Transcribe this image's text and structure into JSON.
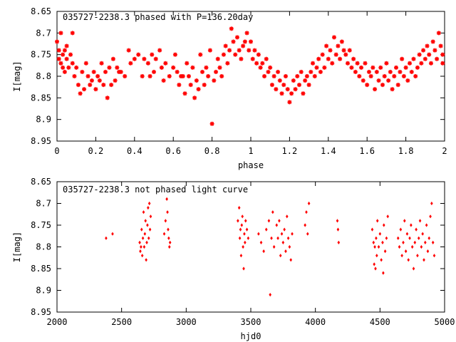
{
  "chart_data": [
    {
      "type": "scatter",
      "title": "035727-2238.3 phased with P=136.20day",
      "xlabel": "phase",
      "ylabel": "I[mag]",
      "xlim": [
        0,
        2
      ],
      "ylim": [
        8.95,
        8.65
      ],
      "y_inverted": true,
      "xticks": [
        "0",
        "0.2",
        "0.4",
        "0.6",
        "0.8",
        "1",
        "1.2",
        "1.4",
        "1.6",
        "1.8",
        "2"
      ],
      "yticks": [
        "8.65",
        "8.7",
        "8.75",
        "8.8",
        "8.85",
        "8.9",
        "8.95"
      ],
      "marker_color": "#ff0000",
      "points": [
        [
          0.0,
          8.72
        ],
        [
          0.01,
          8.76
        ],
        [
          0.01,
          8.74
        ],
        [
          0.02,
          8.7
        ],
        [
          0.02,
          8.77
        ],
        [
          0.03,
          8.75
        ],
        [
          0.03,
          8.78
        ],
        [
          0.04,
          8.74
        ],
        [
          0.04,
          8.79
        ],
        [
          0.05,
          8.73
        ],
        [
          0.05,
          8.76
        ],
        [
          0.06,
          8.78
        ],
        [
          0.07,
          8.75
        ],
        [
          0.08,
          8.7
        ],
        [
          0.08,
          8.77
        ],
        [
          0.09,
          8.8
        ],
        [
          0.1,
          8.78
        ],
        [
          0.11,
          8.82
        ],
        [
          0.12,
          8.84
        ],
        [
          0.13,
          8.79
        ],
        [
          0.14,
          8.83
        ],
        [
          0.15,
          8.77
        ],
        [
          0.16,
          8.8
        ],
        [
          0.17,
          8.82
        ],
        [
          0.18,
          8.81
        ],
        [
          0.19,
          8.79
        ],
        [
          0.2,
          8.83
        ],
        [
          0.21,
          8.8
        ],
        [
          0.22,
          8.81
        ],
        [
          0.23,
          8.77
        ],
        [
          0.24,
          8.82
        ],
        [
          0.25,
          8.79
        ],
        [
          0.26,
          8.85
        ],
        [
          0.27,
          8.78
        ],
        [
          0.28,
          8.82
        ],
        [
          0.29,
          8.76
        ],
        [
          0.3,
          8.81
        ],
        [
          0.31,
          8.78
        ],
        [
          0.32,
          8.79
        ],
        [
          0.33,
          8.79
        ],
        [
          0.35,
          8.8
        ],
        [
          0.37,
          8.74
        ],
        [
          0.38,
          8.77
        ],
        [
          0.4,
          8.76
        ],
        [
          0.42,
          8.75
        ],
        [
          0.44,
          8.8
        ],
        [
          0.45,
          8.76
        ],
        [
          0.47,
          8.77
        ],
        [
          0.48,
          8.8
        ],
        [
          0.49,
          8.75
        ],
        [
          0.5,
          8.79
        ],
        [
          0.51,
          8.76
        ],
        [
          0.53,
          8.74
        ],
        [
          0.54,
          8.78
        ],
        [
          0.55,
          8.81
        ],
        [
          0.56,
          8.77
        ],
        [
          0.58,
          8.8
        ],
        [
          0.6,
          8.78
        ],
        [
          0.61,
          8.75
        ],
        [
          0.62,
          8.79
        ],
        [
          0.63,
          8.82
        ],
        [
          0.64,
          8.8
        ],
        [
          0.65,
          8.8
        ],
        [
          0.66,
          8.84
        ],
        [
          0.67,
          8.77
        ],
        [
          0.68,
          8.8
        ],
        [
          0.69,
          8.82
        ],
        [
          0.7,
          8.78
        ],
        [
          0.71,
          8.85
        ],
        [
          0.72,
          8.81
        ],
        [
          0.73,
          8.83
        ],
        [
          0.74,
          8.75
        ],
        [
          0.75,
          8.79
        ],
        [
          0.76,
          8.82
        ],
        [
          0.77,
          8.78
        ],
        [
          0.78,
          8.8
        ],
        [
          0.79,
          8.74
        ],
        [
          0.8,
          8.91
        ],
        [
          0.81,
          8.81
        ],
        [
          0.82,
          8.79
        ],
        [
          0.83,
          8.76
        ],
        [
          0.84,
          8.78
        ],
        [
          0.85,
          8.8
        ],
        [
          0.86,
          8.75
        ],
        [
          0.87,
          8.73
        ],
        [
          0.88,
          8.77
        ],
        [
          0.89,
          8.74
        ],
        [
          0.9,
          8.69
        ],
        [
          0.91,
          8.72
        ],
        [
          0.92,
          8.75
        ],
        [
          0.93,
          8.71
        ],
        [
          0.94,
          8.74
        ],
        [
          0.95,
          8.76
        ],
        [
          0.96,
          8.73
        ],
        [
          0.97,
          8.72
        ],
        [
          0.98,
          8.7
        ],
        [
          0.99,
          8.74
        ],
        [
          1.0,
          8.72
        ],
        [
          1.01,
          8.76
        ],
        [
          1.02,
          8.74
        ],
        [
          1.03,
          8.77
        ],
        [
          1.04,
          8.75
        ],
        [
          1.05,
          8.78
        ],
        [
          1.06,
          8.77
        ],
        [
          1.07,
          8.8
        ],
        [
          1.08,
          8.76
        ],
        [
          1.09,
          8.79
        ],
        [
          1.1,
          8.78
        ],
        [
          1.11,
          8.82
        ],
        [
          1.12,
          8.8
        ],
        [
          1.13,
          8.83
        ],
        [
          1.14,
          8.79
        ],
        [
          1.15,
          8.81
        ],
        [
          1.16,
          8.84
        ],
        [
          1.17,
          8.82
        ],
        [
          1.18,
          8.8
        ],
        [
          1.19,
          8.83
        ],
        [
          1.2,
          8.86
        ],
        [
          1.21,
          8.84
        ],
        [
          1.22,
          8.81
        ],
        [
          1.23,
          8.83
        ],
        [
          1.24,
          8.8
        ],
        [
          1.25,
          8.82
        ],
        [
          1.26,
          8.79
        ],
        [
          1.27,
          8.84
        ],
        [
          1.28,
          8.81
        ],
        [
          1.29,
          8.8
        ],
        [
          1.3,
          8.82
        ],
        [
          1.31,
          8.79
        ],
        [
          1.32,
          8.77
        ],
        [
          1.33,
          8.8
        ],
        [
          1.34,
          8.78
        ],
        [
          1.35,
          8.76
        ],
        [
          1.36,
          8.79
        ],
        [
          1.37,
          8.75
        ],
        [
          1.38,
          8.78
        ],
        [
          1.39,
          8.73
        ],
        [
          1.4,
          8.76
        ],
        [
          1.41,
          8.74
        ],
        [
          1.42,
          8.77
        ],
        [
          1.43,
          8.71
        ],
        [
          1.44,
          8.75
        ],
        [
          1.45,
          8.73
        ],
        [
          1.46,
          8.76
        ],
        [
          1.47,
          8.72
        ],
        [
          1.48,
          8.74
        ],
        [
          1.49,
          8.75
        ],
        [
          1.5,
          8.77
        ],
        [
          1.51,
          8.74
        ],
        [
          1.52,
          8.78
        ],
        [
          1.53,
          8.76
        ],
        [
          1.54,
          8.79
        ],
        [
          1.55,
          8.77
        ],
        [
          1.56,
          8.8
        ],
        [
          1.57,
          8.78
        ],
        [
          1.58,
          8.81
        ],
        [
          1.59,
          8.77
        ],
        [
          1.6,
          8.82
        ],
        [
          1.61,
          8.79
        ],
        [
          1.62,
          8.8
        ],
        [
          1.63,
          8.78
        ],
        [
          1.64,
          8.83
        ],
        [
          1.65,
          8.79
        ],
        [
          1.66,
          8.81
        ],
        [
          1.67,
          8.78
        ],
        [
          1.68,
          8.82
        ],
        [
          1.69,
          8.8
        ],
        [
          1.7,
          8.77
        ],
        [
          1.71,
          8.81
        ],
        [
          1.72,
          8.79
        ],
        [
          1.73,
          8.83
        ],
        [
          1.74,
          8.8
        ],
        [
          1.75,
          8.78
        ],
        [
          1.76,
          8.82
        ],
        [
          1.77,
          8.79
        ],
        [
          1.78,
          8.76
        ],
        [
          1.79,
          8.8
        ],
        [
          1.8,
          8.78
        ],
        [
          1.81,
          8.81
        ],
        [
          1.82,
          8.77
        ],
        [
          1.83,
          8.79
        ],
        [
          1.84,
          8.76
        ],
        [
          1.85,
          8.8
        ],
        [
          1.86,
          8.78
        ],
        [
          1.87,
          8.75
        ],
        [
          1.88,
          8.77
        ],
        [
          1.89,
          8.74
        ],
        [
          1.9,
          8.76
        ],
        [
          1.91,
          8.73
        ],
        [
          1.92,
          8.75
        ],
        [
          1.93,
          8.77
        ],
        [
          1.94,
          8.72
        ],
        [
          1.95,
          8.74
        ],
        [
          1.96,
          8.76
        ],
        [
          1.97,
          8.7
        ],
        [
          1.98,
          8.73
        ],
        [
          1.99,
          8.75
        ],
        [
          1.99,
          8.77
        ]
      ]
    },
    {
      "type": "scatter",
      "title": "035727-2238.3 not phased light curve",
      "xlabel": "hjd0",
      "ylabel": "I[mag]",
      "xlim": [
        2000,
        5000
      ],
      "ylim": [
        8.95,
        8.65
      ],
      "y_inverted": true,
      "xticks": [
        "2000",
        "2500",
        "3000",
        "3500",
        "4000",
        "4500",
        "5000"
      ],
      "yticks": [
        "8.65",
        "8.7",
        "8.75",
        "8.8",
        "8.85",
        "8.9",
        "8.95"
      ],
      "marker_color": "#ff0000",
      "points": [
        [
          2380,
          8.78
        ],
        [
          2430,
          8.77
        ],
        [
          2640,
          8.79
        ],
        [
          2645,
          8.81
        ],
        [
          2650,
          8.8
        ],
        [
          2655,
          8.76
        ],
        [
          2660,
          8.82
        ],
        [
          2665,
          8.78
        ],
        [
          2670,
          8.72
        ],
        [
          2675,
          8.8
        ],
        [
          2680,
          8.77
        ],
        [
          2685,
          8.74
        ],
        [
          2690,
          8.83
        ],
        [
          2695,
          8.79
        ],
        [
          2700,
          8.75
        ],
        [
          2705,
          8.71
        ],
        [
          2710,
          8.78
        ],
        [
          2715,
          8.7
        ],
        [
          2720,
          8.76
        ],
        [
          2725,
          8.73
        ],
        [
          2830,
          8.77
        ],
        [
          2840,
          8.74
        ],
        [
          2850,
          8.69
        ],
        [
          2855,
          8.72
        ],
        [
          2860,
          8.76
        ],
        [
          2865,
          8.78
        ],
        [
          2870,
          8.8
        ],
        [
          2875,
          8.79
        ],
        [
          3400,
          8.74
        ],
        [
          3410,
          8.71
        ],
        [
          3415,
          8.78
        ],
        [
          3420,
          8.76
        ],
        [
          3425,
          8.82
        ],
        [
          3430,
          8.75
        ],
        [
          3435,
          8.73
        ],
        [
          3440,
          8.8
        ],
        [
          3445,
          8.85
        ],
        [
          3450,
          8.77
        ],
        [
          3455,
          8.79
        ],
        [
          3460,
          8.74
        ],
        [
          3470,
          8.76
        ],
        [
          3480,
          8.78
        ],
        [
          3560,
          8.77
        ],
        [
          3580,
          8.79
        ],
        [
          3600,
          8.81
        ],
        [
          3620,
          8.76
        ],
        [
          3640,
          8.74
        ],
        [
          3650,
          8.91
        ],
        [
          3660,
          8.78
        ],
        [
          3670,
          8.72
        ],
        [
          3680,
          8.8
        ],
        [
          3700,
          8.75
        ],
        [
          3710,
          8.78
        ],
        [
          3720,
          8.74
        ],
        [
          3730,
          8.82
        ],
        [
          3740,
          8.77
        ],
        [
          3750,
          8.79
        ],
        [
          3760,
          8.76
        ],
        [
          3770,
          8.81
        ],
        [
          3780,
          8.73
        ],
        [
          3790,
          8.78
        ],
        [
          3800,
          8.8
        ],
        [
          3810,
          8.83
        ],
        [
          3820,
          8.77
        ],
        [
          3920,
          8.75
        ],
        [
          3930,
          8.72
        ],
        [
          3940,
          8.77
        ],
        [
          3950,
          8.7
        ],
        [
          4170,
          8.74
        ],
        [
          4175,
          8.76
        ],
        [
          4180,
          8.79
        ],
        [
          4440,
          8.76
        ],
        [
          4450,
          8.79
        ],
        [
          4455,
          8.84
        ],
        [
          4460,
          8.8
        ],
        [
          4465,
          8.85
        ],
        [
          4470,
          8.78
        ],
        [
          4475,
          8.82
        ],
        [
          4480,
          8.74
        ],
        [
          4490,
          8.8
        ],
        [
          4500,
          8.77
        ],
        [
          4510,
          8.83
        ],
        [
          4520,
          8.79
        ],
        [
          4525,
          8.86
        ],
        [
          4530,
          8.75
        ],
        [
          4540,
          8.81
        ],
        [
          4550,
          8.78
        ],
        [
          4560,
          8.73
        ],
        [
          4640,
          8.78
        ],
        [
          4650,
          8.8
        ],
        [
          4660,
          8.76
        ],
        [
          4670,
          8.82
        ],
        [
          4680,
          8.79
        ],
        [
          4690,
          8.74
        ],
        [
          4700,
          8.81
        ],
        [
          4710,
          8.77
        ],
        [
          4720,
          8.83
        ],
        [
          4730,
          8.78
        ],
        [
          4740,
          8.75
        ],
        [
          4750,
          8.8
        ],
        [
          4760,
          8.85
        ],
        [
          4770,
          8.79
        ],
        [
          4780,
          8.76
        ],
        [
          4790,
          8.82
        ],
        [
          4800,
          8.78
        ],
        [
          4810,
          8.74
        ],
        [
          4820,
          8.8
        ],
        [
          4830,
          8.77
        ],
        [
          4840,
          8.83
        ],
        [
          4850,
          8.79
        ],
        [
          4860,
          8.75
        ],
        [
          4870,
          8.81
        ],
        [
          4880,
          8.78
        ],
        [
          4890,
          8.73
        ],
        [
          4900,
          8.7
        ],
        [
          4910,
          8.79
        ],
        [
          4920,
          8.82
        ]
      ]
    }
  ]
}
